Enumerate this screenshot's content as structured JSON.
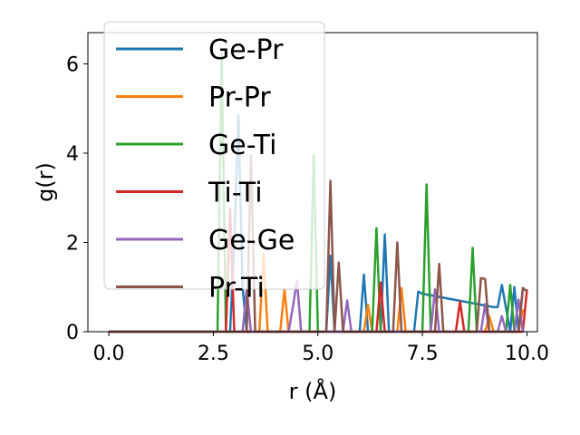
{
  "chart_data": {
    "type": "line",
    "xlabel": "r (Å)",
    "ylabel": "g(r)",
    "xlim": [
      -0.5,
      10.25
    ],
    "ylim": [
      0,
      6.7
    ],
    "xticks": [
      0.0,
      2.5,
      5.0,
      7.5,
      10.0
    ],
    "xtick_labels": [
      "0.0",
      "2.5",
      "5.0",
      "7.5",
      "10.0"
    ],
    "yticks": [
      0,
      2,
      4,
      6
    ],
    "ytick_labels": [
      "0",
      "2",
      "4",
      "6"
    ],
    "grid": false,
    "legend_position": "upper-left",
    "series": [
      {
        "name": "Ge-Pr",
        "color": "#1f77b4",
        "x": [
          0.0,
          2.9,
          3.0,
          3.1,
          3.2,
          3.3,
          5.2,
          5.3,
          5.4,
          6.0,
          6.1,
          6.2,
          6.5,
          6.6,
          6.7,
          7.3,
          7.4,
          7.5,
          9.2,
          9.3,
          9.4,
          9.6,
          9.7,
          9.8,
          9.9
        ],
        "y": [
          0,
          0,
          2.0,
          4.85,
          1.0,
          0,
          0,
          1.7,
          0,
          0,
          1.28,
          0,
          0,
          2.18,
          0,
          0,
          0.9,
          0.85,
          0.55,
          0.55,
          1.05,
          0,
          1.0,
          0,
          0.95
        ]
      },
      {
        "name": "Pr-Pr",
        "color": "#ff7f0e",
        "x": [
          0.0,
          3.6,
          3.7,
          3.8,
          4.1,
          4.2,
          4.3,
          6.1,
          6.2,
          6.3,
          6.9,
          7.0,
          7.1,
          9.0,
          9.1,
          9.2,
          9.8,
          9.9
        ],
        "y": [
          0,
          0,
          1.75,
          0,
          0,
          0.95,
          0,
          0,
          0.6,
          0,
          0,
          0.98,
          0,
          0,
          0.35,
          0,
          0,
          0.5
        ]
      },
      {
        "name": "Ge-Ti",
        "color": "#2ca02c",
        "x": [
          0.0,
          2.6,
          2.7,
          2.8,
          4.8,
          4.9,
          5.0,
          6.3,
          6.4,
          6.5,
          7.5,
          7.6,
          7.7,
          8.6,
          8.7,
          8.8,
          9.5,
          9.6,
          9.7
        ],
        "y": [
          0,
          0,
          6.2,
          0,
          0,
          3.95,
          0,
          0,
          2.32,
          0,
          0,
          3.3,
          0,
          0,
          1.88,
          0,
          0,
          1.05,
          0
        ]
      },
      {
        "name": "Ti-Ti",
        "color": "#d62728",
        "x": [
          0.0,
          2.8,
          2.9,
          3.0,
          6.4,
          6.5,
          6.6,
          8.3,
          8.4,
          8.5,
          9.9,
          10.0
        ],
        "y": [
          0,
          0,
          2.75,
          0,
          0,
          1.1,
          0,
          0,
          0.68,
          0,
          0,
          0.95
        ]
      },
      {
        "name": "Ge-Ge",
        "color": "#9467bd",
        "x": [
          0.0,
          3.2,
          3.3,
          3.4,
          4.3,
          4.4,
          4.5,
          4.6,
          5.6,
          5.7,
          5.8,
          7.7,
          7.8,
          7.9,
          8.9,
          9.0,
          9.1,
          9.3,
          9.4,
          9.5,
          9.7,
          9.8,
          9.9
        ],
        "y": [
          0,
          0,
          0.95,
          0,
          0,
          0.55,
          1.15,
          0,
          0,
          0.7,
          0,
          0,
          0.95,
          0,
          0,
          0.62,
          0,
          0,
          0.35,
          0,
          0,
          0.72,
          0
        ]
      },
      {
        "name": "Pr-Ti",
        "color": "#8c564b",
        "x": [
          0.0,
          3.3,
          3.4,
          3.5,
          5.2,
          5.3,
          5.4,
          5.5,
          5.6,
          6.8,
          6.9,
          7.0,
          7.8,
          7.9,
          8.0,
          8.8,
          8.9,
          9.0,
          9.1,
          9.8,
          9.9,
          10.0
        ],
        "y": [
          0,
          0,
          3.95,
          0,
          0,
          3.38,
          0,
          1.55,
          0,
          0,
          2.0,
          0,
          0,
          1.52,
          0,
          0,
          1.2,
          1.18,
          0,
          0,
          0.98,
          0.9
        ]
      }
    ]
  }
}
